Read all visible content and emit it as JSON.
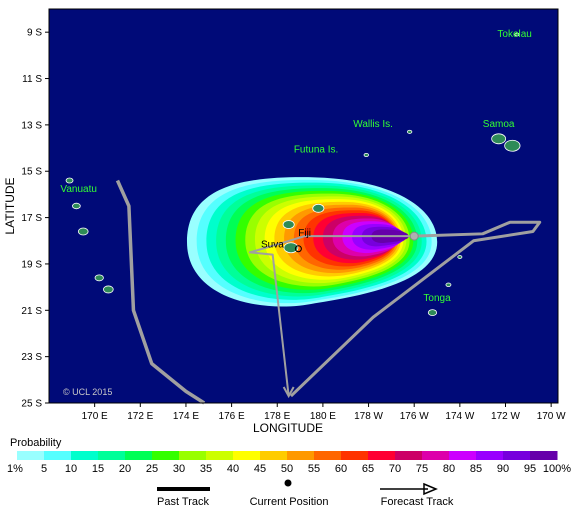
{
  "map": {
    "lat_ticks": [
      "9 S",
      "11 S",
      "13 S",
      "15 S",
      "17 S",
      "19 S",
      "21 S",
      "23 S",
      "25 S"
    ],
    "lon_ticks": [
      "170 E",
      "172 E",
      "174 E",
      "176 E",
      "178 E",
      "180 E",
      "178 W",
      "176 W",
      "174 W",
      "172 W",
      "170 W"
    ],
    "ylabel": "LATITUDE",
    "xlabel": "LONGITUDE",
    "copyright": "© UCL 2015",
    "colors": {
      "ocean": "#000a78",
      "land_outline": "#2e8b57",
      "label_green": "#33ff33",
      "track": "#a0a0a0"
    },
    "places": [
      {
        "name": "Tokelau",
        "lon": -171.6,
        "lat": -9.2
      },
      {
        "name": "Wallis Is.",
        "lon": -177.8,
        "lat": -13.1
      },
      {
        "name": "Samoa",
        "lon": -172.3,
        "lat": -13.1
      },
      {
        "name": "Futuna Is.",
        "lon": -180.3,
        "lat": -14.2
      },
      {
        "name": "Vanuatu",
        "lon": 168.5,
        "lat": -15.9
      },
      {
        "name": "Tonga",
        "lon": -175.0,
        "lat": -20.6
      },
      {
        "name": "Fiji",
        "lon": 179.2,
        "lat": -17.8
      },
      {
        "name": "Suva",
        "lon": 178.4,
        "lat": -18.3
      }
    ],
    "current_position": {
      "lon": -176.0,
      "lat": -17.8
    },
    "past_track": [
      {
        "lon": 171.0,
        "lat": -15.4
      },
      {
        "lon": 171.5,
        "lat": -16.5
      },
      {
        "lon": 171.7,
        "lat": -21.0
      },
      {
        "lon": 172.5,
        "lat": -23.3
      },
      {
        "lon": 174.0,
        "lat": -24.5
      },
      {
        "lon": 174.8,
        "lat": -25.0
      }
    ],
    "forecast_track": [
      {
        "lon": -176.0,
        "lat": -17.8
      },
      {
        "lon": -173.0,
        "lat": -17.7
      },
      {
        "lon": -171.8,
        "lat": -17.2
      },
      {
        "lon": -170.5,
        "lat": -17.2
      },
      {
        "lon": -170.8,
        "lat": -17.6
      },
      {
        "lon": -173.4,
        "lat": -18.0
      },
      {
        "lon": -177.8,
        "lat": -21.3
      },
      {
        "lon": -181.8,
        "lat": -24.8
      },
      {
        "lon": -186.0,
        "lat": -24.5
      },
      {
        "lon": -181.5,
        "lat": -24.9
      },
      {
        "lon": -182.3,
        "lat": -24.6
      },
      {
        "lon": -181.8,
        "lat": -24.8
      }
    ],
    "forecast_track_b": [
      {
        "lon": -176.0,
        "lat": -17.8
      },
      {
        "lon": 179.2,
        "lat": -17.8
      },
      {
        "lon": 178.2,
        "lat": -18.1
      },
      {
        "lon": 176.8,
        "lat": -18.5
      },
      {
        "lon": 177.8,
        "lat": -18.6
      },
      {
        "lon": 178.5,
        "lat": -24.7
      }
    ]
  },
  "legend": {
    "title": "Probability",
    "labels": [
      "1%",
      "5",
      "10",
      "15",
      "20",
      "25",
      "30",
      "35",
      "40",
      "45",
      "50",
      "55",
      "60",
      "65",
      "70",
      "75",
      "80",
      "85",
      "90",
      "95",
      "100%"
    ],
    "colors": [
      "#99ffff",
      "#55ffff",
      "#00ffcc",
      "#00ff99",
      "#00ff55",
      "#33ff00",
      "#99ff00",
      "#ccff00",
      "#ffff00",
      "#ffcc00",
      "#ff9900",
      "#ff6600",
      "#ff3300",
      "#ff0033",
      "#cc0066",
      "#dd00aa",
      "#cc00ff",
      "#9900ff",
      "#7700dd",
      "#6600aa"
    ]
  },
  "key": {
    "past_track": "Past Track",
    "current_position": "Current Position",
    "forecast_track": "Forecast Track"
  }
}
